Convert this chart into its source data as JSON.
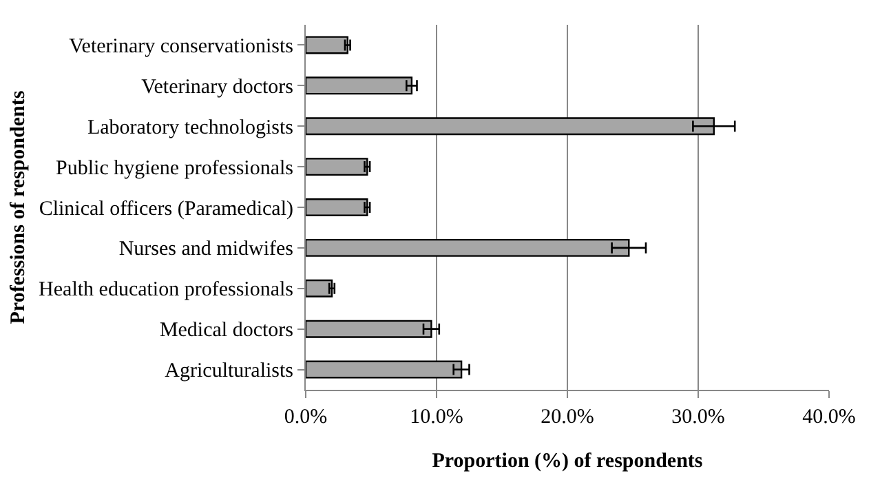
{
  "chart_data": {
    "type": "bar",
    "orientation": "horizontal",
    "xlabel": "Proportion (%) of respondents",
    "ylabel": "Professions of respondents",
    "categories": [
      "Veterinary conservationists",
      "Veterinary doctors",
      "Laboratory technologists",
      "Public hygiene professionals",
      "Clinical officers (Paramedical)",
      "Nurses and midwifes",
      "Health education professionals",
      "Medical doctors",
      "Agriculturalists"
    ],
    "values": [
      3.2,
      8.1,
      31.2,
      4.7,
      4.7,
      24.7,
      2.0,
      9.6,
      11.9
    ],
    "errors": [
      0.2,
      0.4,
      1.6,
      0.2,
      0.2,
      1.3,
      0.2,
      0.6,
      0.6
    ],
    "color": "#a6a6a6",
    "xlim": [
      0,
      40
    ],
    "xticks": [
      {
        "value": 0,
        "label": "0.0%"
      },
      {
        "value": 10,
        "label": "10.0%"
      },
      {
        "value": 20,
        "label": "20.0%"
      },
      {
        "value": 30,
        "label": "30.0%"
      },
      {
        "value": 40,
        "label": "40.0%"
      }
    ],
    "grid": "x"
  }
}
